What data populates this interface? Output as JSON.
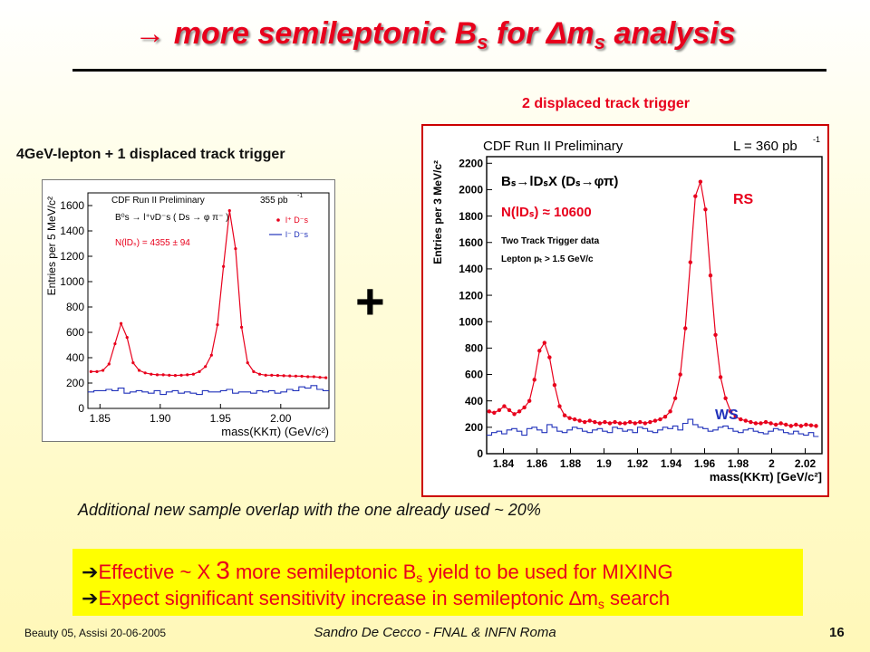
{
  "slide": {
    "title_arrow": "→",
    "title_pre": "more semileptonic B",
    "title_sub": "s",
    "title_mid": "for",
    "title_delta": "Δm",
    "title_sub2": "s",
    "title_post": "analysis",
    "right_trigger_label": "2 displaced track trigger",
    "left_trigger_label": "4GeV-lepton + 1 displaced track trigger",
    "plus": "+",
    "note": "Additional new sample overlap with the one already used ~ 20%",
    "bullet1_pre": "Effective ~ X",
    "bullet1_num": "3",
    "bullet1_mid": "more semileptonic B",
    "bullet1_sub": "s",
    "bullet1_post": "yield to be used for MIXING",
    "bullet2_pre": "Expect significant sensitivity increase in semileptonic",
    "bullet2_delta": "∆m",
    "bullet2_sub": "s",
    "bullet2_post": "search",
    "bullet_marker": "➔",
    "footer_left": "Beauty 05, Assisi 20-06-2005",
    "footer_mid": "Sandro De Cecco - FNAL & INFN Roma",
    "footer_right": "16",
    "colors": {
      "accent_red": "#e8001c",
      "series_blue": "#2233bb",
      "highlight_yellow": "#ffff00"
    }
  },
  "chart_data": [
    {
      "type": "scatter",
      "header": "CDF Run II Preliminary",
      "lumi": "355 pb",
      "lumi_sup": "-1",
      "decay": "B⁰s → l⁺νD⁻s ( Ds → φ π⁻ )",
      "yield_label": "N(lDₛ) = 4355 ± 94",
      "ylabel": "Entries per 5 MeV/c²",
      "xlabel": "mass(KKπ) (GeV/c²)",
      "xlim": [
        1.84,
        2.04
      ],
      "ylim": [
        0,
        1700
      ],
      "xticks": [
        "1.85",
        "1.90",
        "1.95",
        "2.00"
      ],
      "xtick_values": [
        1.85,
        1.9,
        1.95,
        2.0
      ],
      "yticks": [
        "0",
        "200",
        "400",
        "600",
        "800",
        "1000",
        "1200",
        "1400",
        "1600"
      ],
      "ytick_values": [
        0,
        200,
        400,
        600,
        800,
        1000,
        1200,
        1400,
        1600
      ],
      "legend": [
        {
          "name": "l⁺ D⁻s",
          "color": "#e8001c",
          "style": "points"
        },
        {
          "name": "l⁻ D⁻s",
          "color": "#2233bb",
          "style": "line"
        }
      ],
      "series": [
        {
          "name": "RS",
          "color": "#e8001c",
          "x": [
            1.8425,
            1.8475,
            1.8525,
            1.8575,
            1.8625,
            1.8675,
            1.8725,
            1.8775,
            1.8825,
            1.8875,
            1.8925,
            1.8975,
            1.9025,
            1.9075,
            1.9125,
            1.9175,
            1.9225,
            1.9275,
            1.9325,
            1.9375,
            1.9425,
            1.9475,
            1.9525,
            1.9575,
            1.9625,
            1.9675,
            1.9725,
            1.9775,
            1.9825,
            1.9875,
            1.9925,
            1.9975,
            2.0025,
            2.0075,
            2.0125,
            2.0175,
            2.0225,
            2.0275,
            2.0325,
            2.0375
          ],
          "y": [
            290,
            290,
            300,
            350,
            510,
            670,
            560,
            360,
            300,
            280,
            270,
            265,
            265,
            262,
            260,
            262,
            265,
            270,
            290,
            330,
            420,
            660,
            1120,
            1560,
            1260,
            640,
            360,
            290,
            270,
            262,
            262,
            260,
            258,
            256,
            255,
            254,
            250,
            250,
            245,
            242
          ]
        },
        {
          "name": "WS",
          "color": "#2233bb",
          "x": [
            1.8425,
            1.8475,
            1.8525,
            1.8575,
            1.8625,
            1.8675,
            1.8725,
            1.8775,
            1.8825,
            1.8875,
            1.8925,
            1.8975,
            1.9025,
            1.9075,
            1.9125,
            1.9175,
            1.9225,
            1.9275,
            1.9325,
            1.9375,
            1.9425,
            1.9475,
            1.9525,
            1.9575,
            1.9625,
            1.9675,
            1.9725,
            1.9775,
            1.9825,
            1.9875,
            1.9925,
            1.9975,
            2.0025,
            2.0075,
            2.0125,
            2.0175,
            2.0225,
            2.0275,
            2.0325,
            2.0375
          ],
          "y": [
            130,
            140,
            140,
            150,
            140,
            160,
            120,
            130,
            140,
            130,
            120,
            140,
            110,
            130,
            140,
            120,
            130,
            120,
            110,
            140,
            130,
            130,
            140,
            150,
            120,
            130,
            130,
            120,
            140,
            130,
            140,
            120,
            130,
            150,
            140,
            170,
            160,
            180,
            150,
            140
          ]
        }
      ]
    },
    {
      "type": "scatter",
      "header": "CDF Run II Preliminary",
      "lumi": "L = 360 pb",
      "lumi_sup": "-1",
      "decay": "Bₛ→lDₛX (Dₛ→φπ)",
      "yield_label": "N(lDₛ) ≈ 10600",
      "info1": "Two Track Trigger data",
      "info2": "Lepton pₜ > 1.5 GeV/c",
      "rs_label": "RS",
      "ws_label": "WS",
      "ylabel": "Entries per 3 MeV/c²",
      "xlabel": "mass(KKπ) [GeV/c²]",
      "xlim": [
        1.83,
        2.03
      ],
      "ylim": [
        0,
        2250
      ],
      "xticks": [
        "1.84",
        "1.86",
        "1.88",
        "1.9",
        "1.92",
        "1.94",
        "1.96",
        "1.98",
        "2",
        "2.02"
      ],
      "xtick_values": [
        1.84,
        1.86,
        1.88,
        1.9,
        1.92,
        1.94,
        1.96,
        1.98,
        2.0,
        2.02
      ],
      "yticks": [
        "0",
        "200",
        "400",
        "600",
        "800",
        "1000",
        "1200",
        "1400",
        "1600",
        "1800",
        "2000",
        "2200"
      ],
      "ytick_values": [
        0,
        200,
        400,
        600,
        800,
        1000,
        1200,
        1400,
        1600,
        1800,
        2000,
        2200
      ],
      "series": [
        {
          "name": "RS",
          "color": "#e8001c",
          "x": [
            1.8315,
            1.8345,
            1.8375,
            1.8405,
            1.8435,
            1.8465,
            1.8495,
            1.8525,
            1.8555,
            1.8585,
            1.8615,
            1.8645,
            1.8675,
            1.8705,
            1.8735,
            1.8765,
            1.8795,
            1.8825,
            1.8855,
            1.8885,
            1.8915,
            1.8945,
            1.8975,
            1.9005,
            1.9035,
            1.9065,
            1.9095,
            1.9125,
            1.9155,
            1.9185,
            1.9215,
            1.9245,
            1.9275,
            1.9305,
            1.9335,
            1.9365,
            1.9395,
            1.9425,
            1.9455,
            1.9485,
            1.9515,
            1.9545,
            1.9575,
            1.9605,
            1.9635,
            1.9665,
            1.9695,
            1.9725,
            1.9755,
            1.9785,
            1.9815,
            1.9845,
            1.9875,
            1.9905,
            1.9935,
            1.9965,
            1.9995,
            2.0025,
            2.0055,
            2.0085,
            2.0115,
            2.0145,
            2.0175,
            2.0205,
            2.0235,
            2.0265
          ],
          "y": [
            320,
            310,
            330,
            360,
            330,
            300,
            320,
            350,
            400,
            560,
            780,
            840,
            730,
            520,
            360,
            290,
            270,
            260,
            250,
            240,
            250,
            240,
            230,
            240,
            230,
            240,
            230,
            230,
            240,
            230,
            240,
            230,
            240,
            250,
            260,
            280,
            320,
            420,
            600,
            950,
            1450,
            1950,
            2060,
            1850,
            1350,
            900,
            580,
            420,
            320,
            280,
            260,
            250,
            240,
            230,
            230,
            240,
            230,
            220,
            230,
            220,
            210,
            220,
            210,
            220,
            215,
            210
          ]
        },
        {
          "name": "WS",
          "color": "#2233bb",
          "x": [
            1.8315,
            1.8345,
            1.8375,
            1.8405,
            1.8435,
            1.8465,
            1.8495,
            1.8525,
            1.8555,
            1.8585,
            1.8615,
            1.8645,
            1.8675,
            1.8705,
            1.8735,
            1.8765,
            1.8795,
            1.8825,
            1.8855,
            1.8885,
            1.8915,
            1.8945,
            1.8975,
            1.9005,
            1.9035,
            1.9065,
            1.9095,
            1.9125,
            1.9155,
            1.9185,
            1.9215,
            1.9245,
            1.9275,
            1.9305,
            1.9335,
            1.9365,
            1.9395,
            1.9425,
            1.9455,
            1.9485,
            1.9515,
            1.9545,
            1.9575,
            1.9605,
            1.9635,
            1.9665,
            1.9695,
            1.9725,
            1.9755,
            1.9785,
            1.9815,
            1.9845,
            1.9875,
            1.9905,
            1.9935,
            1.9965,
            1.9995,
            2.0025,
            2.0055,
            2.0085,
            2.0115,
            2.0145,
            2.0175,
            2.0205,
            2.0235,
            2.0265
          ],
          "y": [
            140,
            160,
            170,
            150,
            180,
            190,
            170,
            140,
            190,
            200,
            180,
            160,
            220,
            200,
            170,
            160,
            180,
            200,
            190,
            170,
            160,
            180,
            190,
            170,
            160,
            200,
            190,
            170,
            180,
            160,
            200,
            190,
            170,
            160,
            180,
            200,
            190,
            210,
            180,
            230,
            260,
            220,
            200,
            190,
            170,
            180,
            200,
            210,
            190,
            170,
            160,
            180,
            190,
            170,
            160,
            150,
            170,
            190,
            180,
            160,
            150,
            170,
            150,
            140,
            160,
            130
          ]
        }
      ]
    }
  ]
}
